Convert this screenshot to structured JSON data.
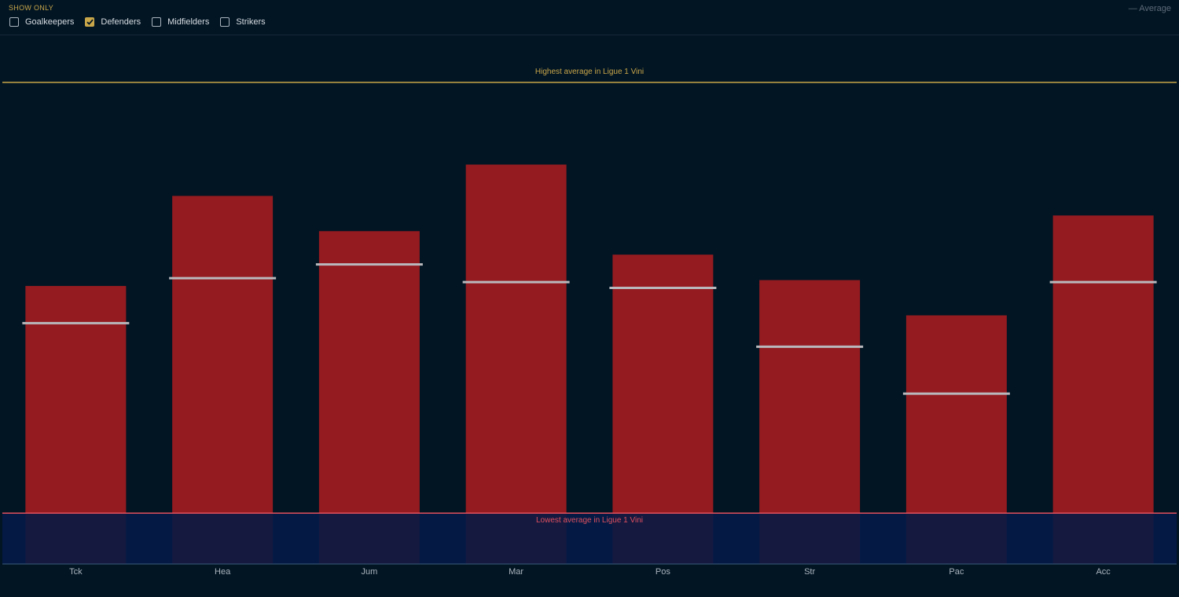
{
  "filter": {
    "title": "SHOW ONLY",
    "options": [
      {
        "label": "Goalkeepers",
        "checked": false
      },
      {
        "label": "Defenders",
        "checked": true
      },
      {
        "label": "Midfielders",
        "checked": false
      },
      {
        "label": "Strikers",
        "checked": false
      }
    ]
  },
  "legend": {
    "label": "— Average"
  },
  "colors": {
    "bar": "#941b20",
    "average_marker": "#b9b9bd",
    "highest_line": "#c8a64a",
    "lowest_line": "#e0505e",
    "lowest_band": "#041a45",
    "background": "#021523"
  },
  "chart_data": {
    "type": "bar",
    "categories": [
      "Tck",
      "Hea",
      "Jum",
      "Mar",
      "Pos",
      "Str",
      "Pac",
      "Acc"
    ],
    "series": [
      {
        "values": [
          10.6,
          12.9,
          12.0,
          13.7,
          11.4,
          10.75,
          9.85,
          12.4
        ]
      },
      {
        "name": "Average",
        "values": [
          9.65,
          10.8,
          11.15,
          10.7,
          10.55,
          9.05,
          7.85,
          10.7
        ]
      }
    ],
    "reference_lines": [
      {
        "label": "Highest average in Ligue 1 Vini",
        "value": 15.8
      },
      {
        "label": "Lowest average in Ligue 1 Vini",
        "value": 4.8
      }
    ],
    "ylim": [
      3.5,
      17.0
    ],
    "grid": false,
    "legend_position": "top-right"
  }
}
